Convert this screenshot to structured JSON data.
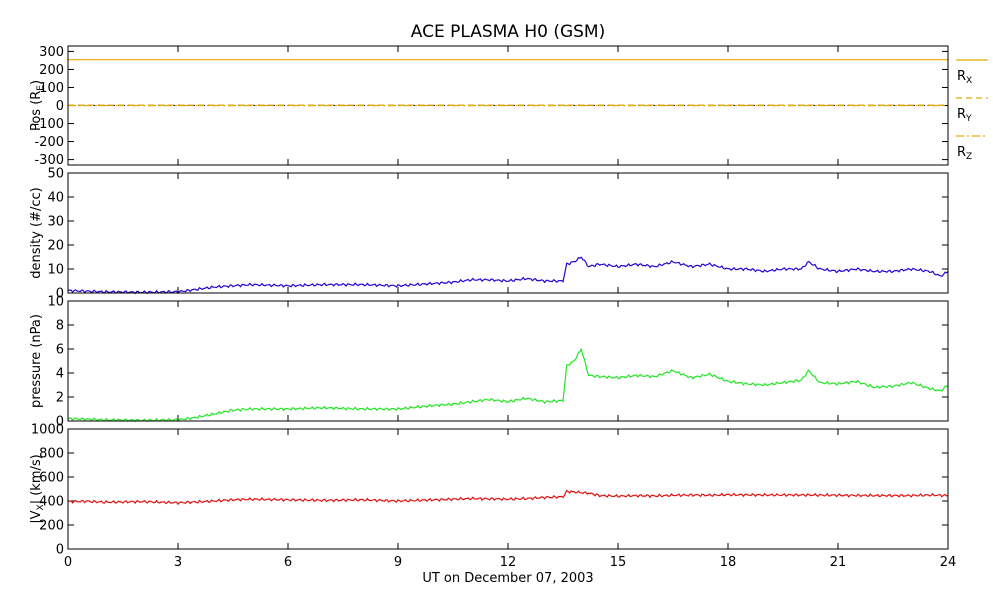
{
  "chart_data": {
    "title": "ACE PLASMA H0 (GSM)",
    "xlabel": "UT on December 07, 2003",
    "x_ticks": [
      "0",
      "3",
      "6",
      "9",
      "12",
      "15",
      "18",
      "21",
      "24"
    ],
    "xlim": [
      0,
      24
    ],
    "x_unit": "hours UT",
    "panels": [
      {
        "id": "pos",
        "type": "line",
        "ylabel": "Pos (R",
        "ylabel_sub": "E",
        "ylabel_end": ")",
        "ylim": [
          -330,
          330
        ],
        "y_ticks": [
          "300",
          "200",
          "100",
          "0",
          "-100",
          "-200",
          "-300"
        ],
        "y_tick_values": [
          300,
          200,
          100,
          0,
          -100,
          -200,
          -300
        ],
        "legend_placement": "right",
        "series": [
          {
            "name": "R",
            "sub": "X",
            "color": "#e8a800",
            "dash": "",
            "x": [
              0,
              24
            ],
            "values": [
              254,
              254
            ]
          },
          {
            "name": "R",
            "sub": "Y",
            "color": "#e8a800",
            "dash": "6,4",
            "x": [
              0,
              24
            ],
            "values": [
              2,
              2
            ]
          },
          {
            "name": "R",
            "sub": "Z",
            "color": "#e8a800",
            "dash": "8,3,2,3",
            "x": [
              0,
              24
            ],
            "values": [
              -1,
              -1
            ]
          }
        ],
        "reference_line": {
          "value": 0,
          "color": "#000000",
          "dash": "2,3"
        }
      },
      {
        "id": "density",
        "type": "line",
        "ylabel": "density (#/cc)",
        "ylim": [
          0,
          50
        ],
        "y_ticks": [
          "50",
          "40",
          "30",
          "20",
          "10",
          "0"
        ],
        "y_tick_values": [
          50,
          40,
          30,
          20,
          10,
          0
        ],
        "series": [
          {
            "name": "",
            "color": "#2a00d4",
            "x": [
              0,
              1,
              2,
              3,
              3.5,
              4,
              4.5,
              5,
              6,
              7,
              8,
              9,
              10,
              10.5,
              11,
              11.5,
              12,
              12.5,
              13,
              13.5,
              13.6,
              13.8,
              14,
              14.2,
              14.5,
              15,
              15.5,
              16,
              16.5,
              17,
              17.5,
              18,
              18.5,
              19,
              19.5,
              20,
              20.2,
              20.5,
              21,
              21.5,
              22,
              22.5,
              23,
              23.5,
              23.8,
              24
            ],
            "values": [
              1,
              0.5,
              0.3,
              0.5,
              1.5,
              2.5,
              3,
              3.5,
              3,
              3.5,
              3.5,
              3,
              4,
              4.5,
              5.5,
              5.5,
              5,
              6,
              5,
              5,
              12,
              13,
              15,
              11,
              12,
              11,
              12,
              11,
              13,
              11,
              12,
              10,
              10,
              9,
              10,
              10,
              13,
              10,
              9,
              10,
              9,
              9,
              10,
              9,
              7,
              9
            ]
          }
        ]
      },
      {
        "id": "pressure",
        "type": "line",
        "ylabel": "pressure (nPa)",
        "ylim": [
          0,
          10
        ],
        "y_ticks": [
          "10",
          "8",
          "6",
          "4",
          "2",
          "0"
        ],
        "y_tick_values": [
          10,
          8,
          6,
          4,
          2,
          0
        ],
        "series": [
          {
            "name": "",
            "color": "#22e622",
            "x": [
              0,
              1,
              2,
              3,
              3.5,
              4,
              4.5,
              5,
              6,
              7,
              8,
              9,
              10,
              10.5,
              11,
              11.5,
              12,
              12.5,
              13,
              13.5,
              13.6,
              13.8,
              14,
              14.2,
              14.5,
              15,
              15.5,
              16,
              16.5,
              17,
              17.5,
              18,
              18.5,
              19,
              19.5,
              20,
              20.2,
              20.5,
              21,
              21.5,
              22,
              22.5,
              23,
              23.5,
              23.8,
              24
            ],
            "values": [
              0.2,
              0.1,
              0.05,
              0.1,
              0.3,
              0.6,
              0.9,
              1,
              1,
              1.1,
              1,
              1,
              1.3,
              1.4,
              1.6,
              1.8,
              1.6,
              1.9,
              1.6,
              1.7,
              4.6,
              5,
              6,
              3.8,
              3.7,
              3.6,
              3.8,
              3.7,
              4.2,
              3.6,
              3.9,
              3.3,
              3.1,
              3,
              3.2,
              3.4,
              4.2,
              3.2,
              3.1,
              3.3,
              2.8,
              2.9,
              3.2,
              2.7,
              2.5,
              3
            ]
          }
        ]
      },
      {
        "id": "vx",
        "type": "line",
        "ylabel": "|V",
        "ylabel_sub": "X",
        "ylabel_end": "| (km/s)",
        "ylim": [
          0,
          1000
        ],
        "y_ticks": [
          "1000",
          "800",
          "600",
          "400",
          "200",
          "0"
        ],
        "y_tick_values": [
          1000,
          800,
          600,
          400,
          200,
          0
        ],
        "series": [
          {
            "name": "",
            "color": "#e01010",
            "x": [
              0,
              0.5,
              1,
              1.5,
              2,
              2.5,
              3,
              3.5,
              4,
              4.5,
              5,
              6,
              7,
              8,
              9,
              10,
              10.5,
              11,
              11.5,
              12,
              12.5,
              13,
              13.5,
              13.6,
              13.8,
              14,
              14.2,
              14.5,
              15,
              15.5,
              16,
              16.5,
              17,
              17.5,
              18,
              19,
              20,
              21,
              22,
              23,
              23.5,
              24
            ],
            "values": [
              395,
              398,
              390,
              392,
              395,
              390,
              385,
              392,
              400,
              410,
              415,
              410,
              405,
              410,
              400,
              410,
              415,
              420,
              418,
              415,
              420,
              430,
              435,
              480,
              475,
              470,
              465,
              445,
              440,
              445,
              442,
              448,
              450,
              448,
              452,
              450,
              450,
              448,
              445,
              445,
              450,
              445
            ]
          }
        ]
      }
    ]
  }
}
